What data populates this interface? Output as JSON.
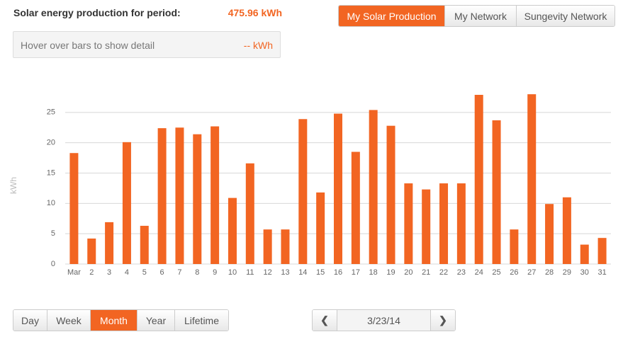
{
  "header": {
    "title": "Solar energy production for period:",
    "total": "475.96 kWh"
  },
  "detail": {
    "hint": "Hover over bars to show detail",
    "value": "-- kWh"
  },
  "tabs": [
    "My Solar Production",
    "My Network",
    "Sungevity Network"
  ],
  "periods": [
    "Day",
    "Week",
    "Month",
    "Year",
    "Lifetime"
  ],
  "date": "3/23/14",
  "chart_data": {
    "type": "bar",
    "y_label": "kWh",
    "color": "#f26522",
    "grid": true,
    "categories": [
      "Mar",
      "2",
      "3",
      "4",
      "5",
      "6",
      "7",
      "8",
      "9",
      "10",
      "11",
      "12",
      "13",
      "14",
      "15",
      "16",
      "17",
      "18",
      "19",
      "20",
      "21",
      "22",
      "23",
      "24",
      "25",
      "26",
      "27",
      "28",
      "29",
      "30",
      "31"
    ],
    "values": [
      18.3,
      4.2,
      6.9,
      20.1,
      6.3,
      22.4,
      22.5,
      21.4,
      22.7,
      10.9,
      16.6,
      5.7,
      5.7,
      23.9,
      11.8,
      24.8,
      18.5,
      25.4,
      22.8,
      13.3,
      12.3,
      13.3,
      13.3,
      27.9,
      23.7,
      5.7,
      28.0,
      9.9,
      11.0,
      3.2,
      4.3
    ],
    "ylim": [
      0,
      30
    ],
    "yticks": [
      0,
      5,
      10,
      15,
      20,
      25
    ]
  }
}
